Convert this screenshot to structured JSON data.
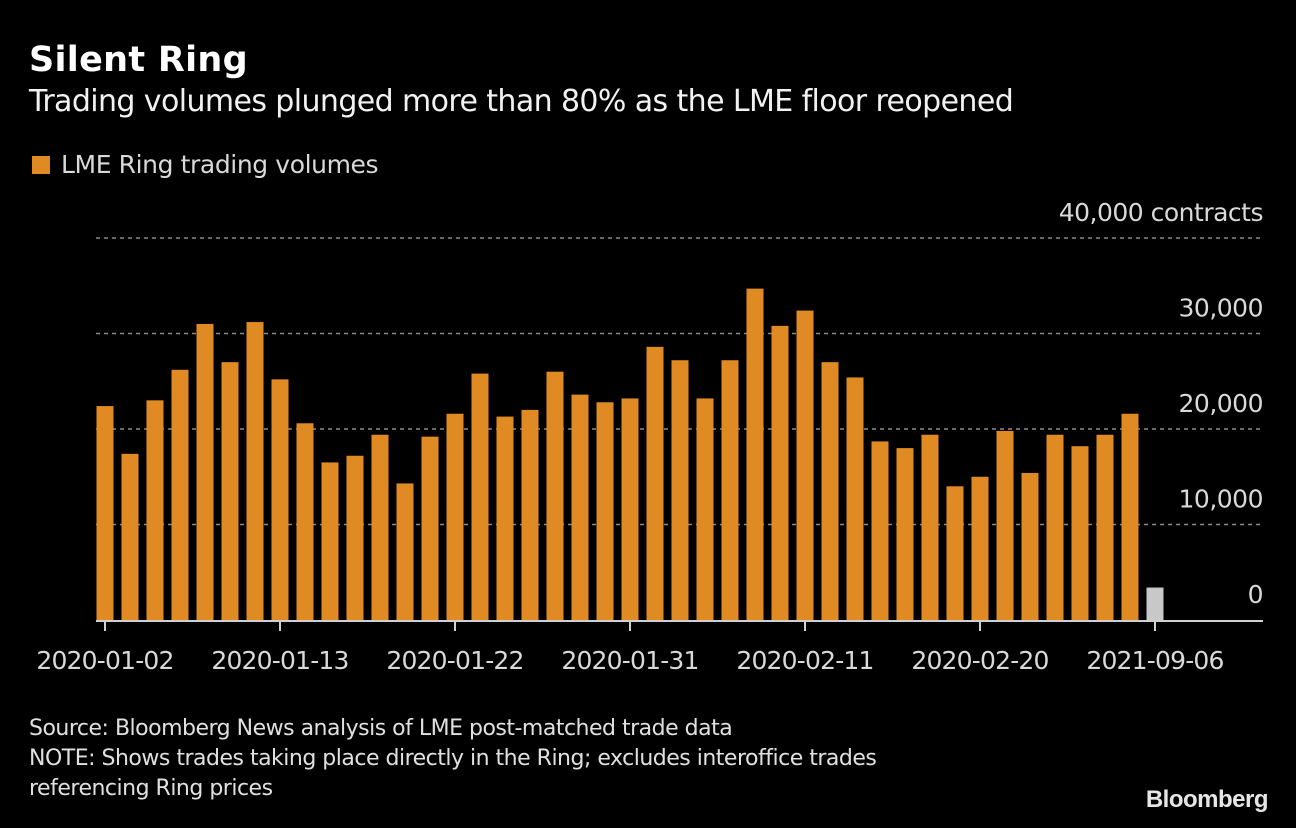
{
  "header": {
    "title": "Silent Ring",
    "subtitle": "Trading volumes plunged more than 80% as the LME floor reopened"
  },
  "legend": {
    "label": "LME Ring trading volumes",
    "color": "#E08A24"
  },
  "footer": {
    "source": "Source: Bloomberg News analysis of LME post-matched trade data",
    "note_line1": "NOTE: Shows trades taking place directly in the Ring; excludes interoffice trades",
    "note_line2": "referencing Ring prices",
    "brand": "Bloomberg"
  },
  "chart_data": {
    "type": "bar",
    "title": "Silent Ring",
    "subtitle": "Trading volumes plunged more than 80% as the LME floor reopened",
    "xlabel": "",
    "ylabel": "contracts",
    "ylim": [
      0,
      40000
    ],
    "grid": true,
    "legend_position": "top-left",
    "y_ticks": [
      {
        "value": 40000,
        "label": "40,000 contracts"
      },
      {
        "value": 30000,
        "label": "30,000"
      },
      {
        "value": 20000,
        "label": "20,000"
      },
      {
        "value": 10000,
        "label": "10,000"
      },
      {
        "value": 0,
        "label": "0"
      }
    ],
    "x_tick_labels": [
      {
        "index": 0,
        "label": "2020-01-02"
      },
      {
        "index": 7,
        "label": "2020-01-13"
      },
      {
        "index": 14,
        "label": "2020-01-22"
      },
      {
        "index": 21,
        "label": "2020-01-31"
      },
      {
        "index": 28,
        "label": "2020-02-11"
      },
      {
        "index": 35,
        "label": "2020-02-20"
      },
      {
        "index": 42,
        "label": "2021-09-06"
      }
    ],
    "series": [
      {
        "name": "LME Ring trading volumes",
        "color": "#E08A24",
        "highlight_color": "#C8C8C8",
        "highlight_index": 42,
        "values": [
          22400,
          17400,
          23000,
          26200,
          31000,
          27000,
          31200,
          25200,
          20600,
          16500,
          17200,
          19400,
          14300,
          19200,
          21600,
          25800,
          21300,
          22000,
          26000,
          23600,
          22800,
          23200,
          28600,
          27200,
          23200,
          27200,
          34700,
          30800,
          32400,
          27000,
          25400,
          18700,
          18000,
          19400,
          14000,
          15000,
          19800,
          15400,
          19400,
          18200,
          19400,
          21600,
          3400
        ]
      }
    ]
  }
}
